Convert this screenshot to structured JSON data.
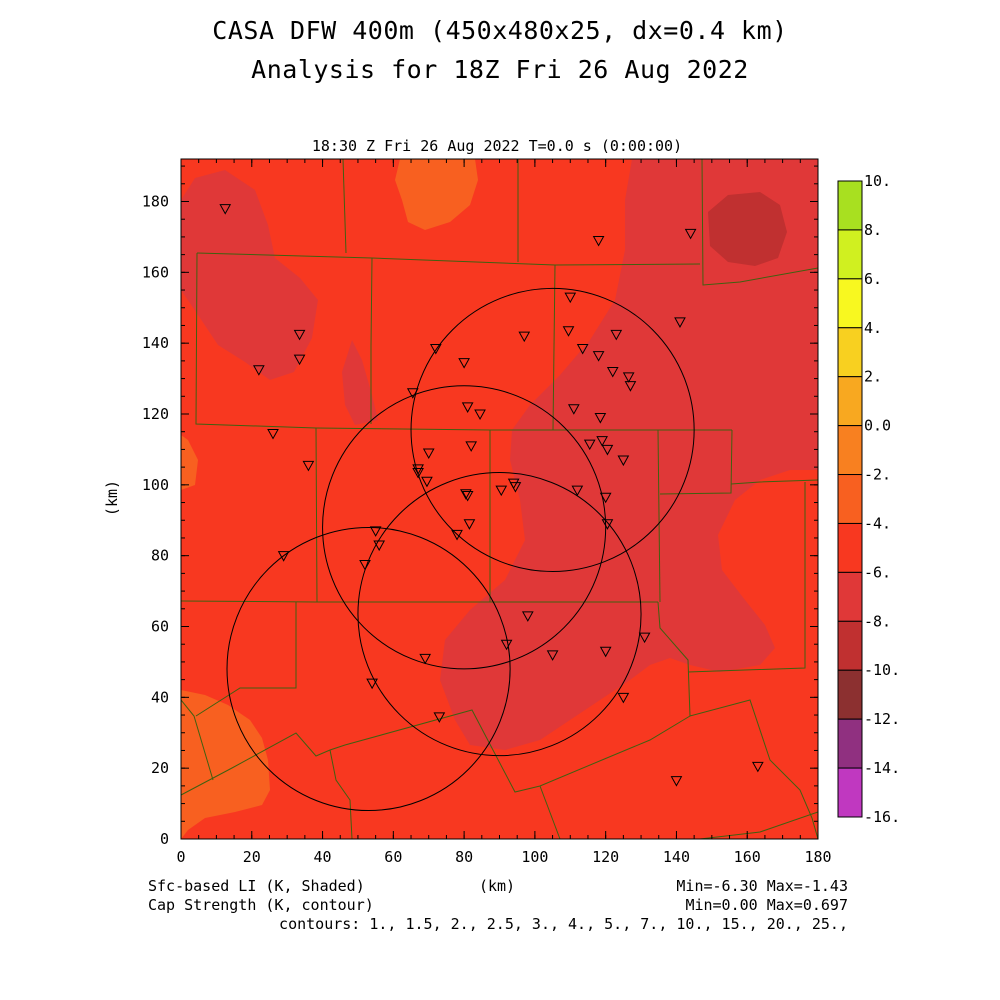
{
  "header": {
    "title_line1": "CASA DFW 400m (450x480x25, dx=0.4 km)",
    "title_line2": "Analysis for 18Z Fri 26 Aug 2022",
    "time_label": "18:30 Z Fri 26 Aug 2022   T=0.0 s (0:00:00)"
  },
  "axes": {
    "x_label": "(km)",
    "y_label": "(km)",
    "x_ticks": [
      "0",
      "20",
      "40",
      "60",
      "80",
      "100",
      "120",
      "140",
      "160",
      "180"
    ],
    "y_ticks": [
      "0",
      "20",
      "40",
      "60",
      "80",
      "100",
      "120",
      "140",
      "160",
      "180"
    ],
    "x_range": [
      0,
      180
    ],
    "y_range": [
      0,
      192
    ]
  },
  "colorbar": {
    "labels": [
      "10.",
      "8.",
      "6.",
      "4.",
      "2.",
      "0.0",
      "-2.",
      "-4.",
      "-6.",
      "-8.",
      "-10.",
      "-12.",
      "-14.",
      "-16."
    ],
    "colors": [
      "#a8e020",
      "#d0f020",
      "#f8f820",
      "#f8d020",
      "#f8a820",
      "#f88020",
      "#f86020",
      "#f83820",
      "#e03838",
      "#c03030",
      "#8c3030",
      "#903080",
      "#c038c0",
      "#e040e0"
    ]
  },
  "footer": {
    "left_line1": "Sfc-based LI (K, Shaded)",
    "left_line2": "Cap Strength (K, contour)",
    "center": "(km)",
    "right_line1": "Min=-6.30 Max=-1.43",
    "right_line2": "Min=0.00 Max=0.697",
    "contours": "contours: 1., 1.5, 2., 2.5, 3., 4., 5., 7., 10., 15., 20., 25.,"
  },
  "fill_colors": {
    "background": "#f83820",
    "darker": "#e03838",
    "darkest": "#c03030",
    "lighter": "#f86020",
    "boundary": "#406010"
  },
  "radars": [
    {
      "cx": 105,
      "cy": 115.5,
      "r": 40
    },
    {
      "cx": 80,
      "cy": 88,
      "r": 40
    },
    {
      "cx": 90,
      "cy": 63.5,
      "r": 40
    },
    {
      "cx": 53,
      "cy": 48,
      "r": 40
    }
  ],
  "stations": [
    [
      12.5,
      178
    ],
    [
      33.5,
      142.5
    ],
    [
      33.5,
      135.5
    ],
    [
      22,
      132.5
    ],
    [
      26,
      114.5
    ],
    [
      36,
      105.5
    ],
    [
      29,
      80
    ],
    [
      55,
      87
    ],
    [
      56,
      83
    ],
    [
      52,
      77.5
    ],
    [
      54,
      44
    ],
    [
      72,
      138.5
    ],
    [
      65.5,
      126
    ],
    [
      70,
      109
    ],
    [
      67,
      104.5
    ],
    [
      67,
      103.5
    ],
    [
      69.5,
      101
    ],
    [
      80,
      134.5
    ],
    [
      81,
      122
    ],
    [
      84.5,
      120
    ],
    [
      82,
      111
    ],
    [
      80.5,
      97.5
    ],
    [
      81,
      97
    ],
    [
      81.5,
      89
    ],
    [
      78,
      86
    ],
    [
      97,
      142
    ],
    [
      109.5,
      143.5
    ],
    [
      110,
      153
    ],
    [
      113.5,
      138.5
    ],
    [
      118,
      136.5
    ],
    [
      122,
      132
    ],
    [
      126.5,
      130.5
    ],
    [
      127,
      128
    ],
    [
      123,
      142.5
    ],
    [
      111,
      121.5
    ],
    [
      118.5,
      119
    ],
    [
      115.5,
      111.5
    ],
    [
      119,
      112.5
    ],
    [
      120.5,
      110
    ],
    [
      125,
      107
    ],
    [
      94,
      100.5
    ],
    [
      94.5,
      99.5
    ],
    [
      90.5,
      98.5
    ],
    [
      112,
      98.5
    ],
    [
      120,
      96.5
    ],
    [
      120.5,
      89
    ],
    [
      118,
      169
    ],
    [
      144,
      171
    ],
    [
      141,
      146
    ],
    [
      69,
      51
    ],
    [
      73,
      34.5
    ],
    [
      92,
      55
    ],
    [
      98,
      63
    ],
    [
      105,
      52
    ],
    [
      120,
      53
    ],
    [
      131,
      57
    ],
    [
      125,
      40
    ],
    [
      140,
      16.5
    ],
    [
      163,
      20.5
    ]
  ]
}
